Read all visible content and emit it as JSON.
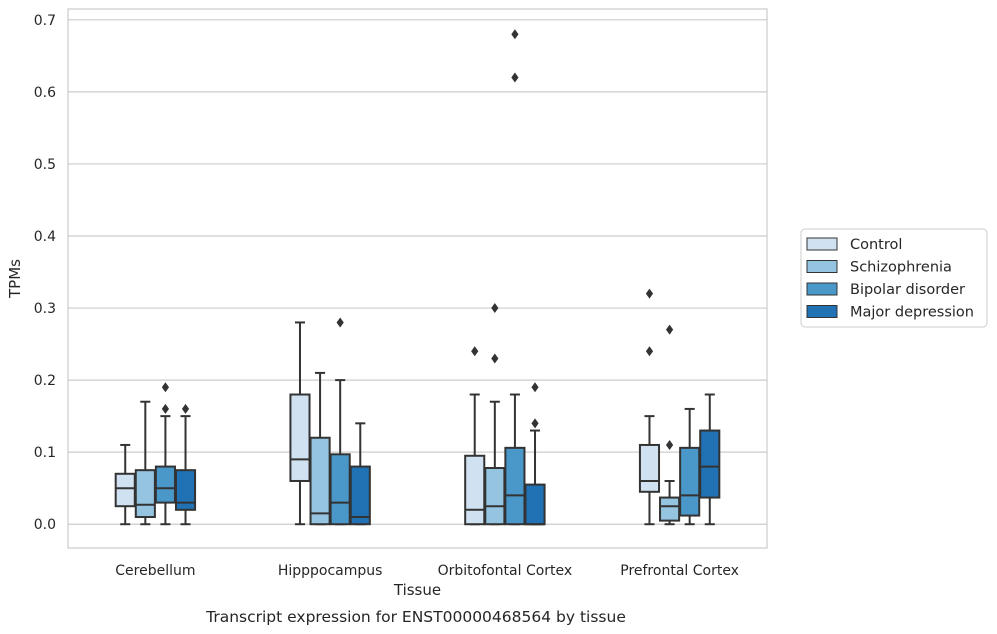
{
  "chart_data": {
    "type": "boxplot",
    "xlabel": "Tissue",
    "ylabel": "TPMs",
    "caption": "Transcript expression for ENST00000468564 by tissue",
    "ylim": [
      -0.033,
      0.715
    ],
    "yticks": [
      "0.0",
      "0.1",
      "0.2",
      "0.3",
      "0.4",
      "0.5",
      "0.6",
      "0.7"
    ],
    "grid": true,
    "legend_position": "right",
    "categories": [
      "Cerebellum",
      "Hipppocampus",
      "Orbitofontal Cortex",
      "Prefrontal Cortex"
    ],
    "series": [
      {
        "name": "Control",
        "color": "#d0e1f2",
        "boxes": [
          {
            "whislo": 0.0,
            "q1": 0.025,
            "med": 0.05,
            "q3": 0.07,
            "whishi": 0.11,
            "fliers": []
          },
          {
            "whislo": 0.0,
            "q1": 0.06,
            "med": 0.09,
            "q3": 0.18,
            "whishi": 0.28,
            "fliers": []
          },
          {
            "whislo": 0.0,
            "q1": 0.0,
            "med": 0.02,
            "q3": 0.095,
            "whishi": 0.18,
            "fliers": [
              0.24
            ]
          },
          {
            "whislo": 0.0,
            "q1": 0.045,
            "med": 0.06,
            "q3": 0.11,
            "whishi": 0.15,
            "fliers": [
              0.24,
              0.32
            ]
          }
        ]
      },
      {
        "name": "Schizophrenia",
        "color": "#94c4df",
        "boxes": [
          {
            "whislo": 0.0,
            "q1": 0.01,
            "med": 0.027,
            "q3": 0.075,
            "whishi": 0.17,
            "fliers": []
          },
          {
            "whislo": 0.0,
            "q1": 0.0,
            "med": 0.015,
            "q3": 0.12,
            "whishi": 0.21,
            "fliers": []
          },
          {
            "whislo": 0.0,
            "q1": 0.0,
            "med": 0.025,
            "q3": 0.078,
            "whishi": 0.17,
            "fliers": [
              0.23,
              0.3
            ]
          },
          {
            "whislo": 0.0,
            "q1": 0.005,
            "med": 0.025,
            "q3": 0.037,
            "whishi": 0.06,
            "fliers": [
              0.11,
              0.27
            ]
          }
        ]
      },
      {
        "name": "Bipolar disorder",
        "color": "#4a98c9",
        "boxes": [
          {
            "whislo": 0.0,
            "q1": 0.03,
            "med": 0.05,
            "q3": 0.08,
            "whishi": 0.15,
            "fliers": [
              0.16,
              0.19
            ]
          },
          {
            "whislo": 0.0,
            "q1": 0.0,
            "med": 0.03,
            "q3": 0.097,
            "whishi": 0.2,
            "fliers": [
              0.28
            ]
          },
          {
            "whislo": 0.0,
            "q1": 0.0,
            "med": 0.04,
            "q3": 0.106,
            "whishi": 0.18,
            "fliers": [
              0.62,
              0.68
            ]
          },
          {
            "whislo": 0.0,
            "q1": 0.012,
            "med": 0.04,
            "q3": 0.106,
            "whishi": 0.16,
            "fliers": []
          }
        ]
      },
      {
        "name": "Major depression",
        "color": "#2171b5",
        "boxes": [
          {
            "whislo": 0.0,
            "q1": 0.02,
            "med": 0.03,
            "q3": 0.075,
            "whishi": 0.15,
            "fliers": [
              0.16
            ]
          },
          {
            "whislo": 0.0,
            "q1": 0.0,
            "med": 0.01,
            "q3": 0.08,
            "whishi": 0.14,
            "fliers": []
          },
          {
            "whislo": 0.0,
            "q1": 0.0,
            "med": 0.0,
            "q3": 0.055,
            "whishi": 0.13,
            "fliers": [
              0.14,
              0.19
            ]
          },
          {
            "whislo": 0.0,
            "q1": 0.037,
            "med": 0.08,
            "q3": 0.13,
            "whishi": 0.18,
            "fliers": []
          }
        ]
      }
    ]
  }
}
